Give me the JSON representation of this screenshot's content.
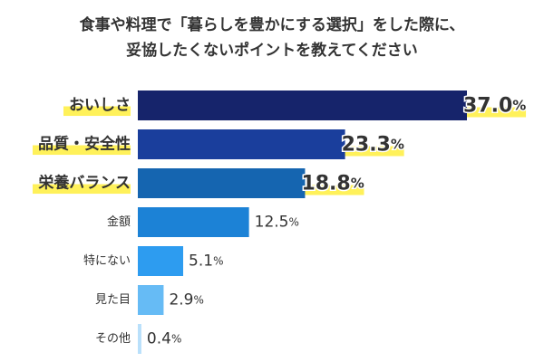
{
  "chart_data": {
    "type": "bar",
    "orientation": "horizontal",
    "title_lines": [
      "食事や料理で「暮らしを豊かにする選択」をした際に、",
      "妥協したくないポイントを教えてください"
    ],
    "categories": [
      "おいしさ",
      "品質・安全性",
      "栄養バランス",
      "金額",
      "特にない",
      "見た目",
      "その他"
    ],
    "values": [
      37.0,
      23.3,
      18.8,
      12.5,
      5.1,
      2.9,
      0.4
    ],
    "value_labels": [
      {
        "num": "37.0",
        "unit": "%"
      },
      {
        "num": "23.3",
        "unit": "%"
      },
      {
        "num": "18.8",
        "unit": "%"
      },
      {
        "num": "12.5",
        "unit": "%"
      },
      {
        "num": "5.1",
        "unit": "%"
      },
      {
        "num": "2.9",
        "unit": "%"
      },
      {
        "num": "0.4",
        "unit": "%"
      }
    ],
    "highlighted": [
      true,
      true,
      true,
      false,
      false,
      false,
      false
    ],
    "bar_colors": [
      "#16246b",
      "#1a3e9c",
      "#1565b0",
      "#1c82d6",
      "#2d9cf0",
      "#66bbf5",
      "#b9e0fb"
    ],
    "highlight_color": "#fff15a",
    "value_label_color": "#333333",
    "highlight_value_outline": "#ffffff",
    "xlim": [
      0,
      37.0
    ],
    "grid": false,
    "legend": "none"
  }
}
